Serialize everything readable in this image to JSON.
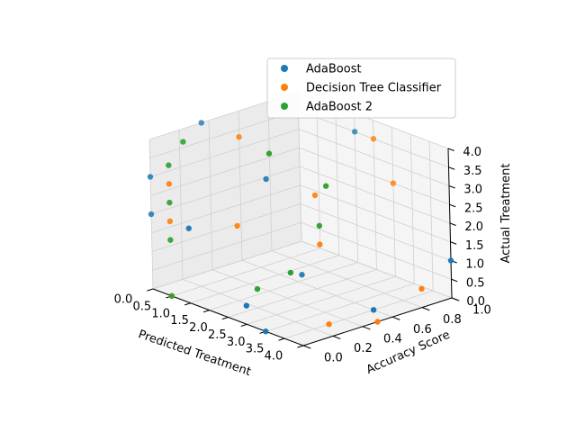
{
  "chart_data": {
    "type": "scatter",
    "projection": "3d",
    "xlabel": "Predicted Treatment",
    "ylabel": "Accuracy Score",
    "zlabel": "Actual Treatment",
    "xlim": [
      0,
      4
    ],
    "ylim": [
      0,
      1
    ],
    "zlim": [
      0,
      4
    ],
    "x_ticks": [
      "0.0",
      "0.5",
      "1.0",
      "1.5",
      "2.0",
      "2.5",
      "3.0",
      "3.5",
      "4.0"
    ],
    "y_ticks": [
      "0.0",
      "0.2",
      "0.4",
      "0.6",
      "0.8",
      "1.0"
    ],
    "z_ticks": [
      "0.0",
      "0.5",
      "1.0",
      "1.5",
      "2.0",
      "2.5",
      "3.0",
      "3.5",
      "4.0"
    ],
    "grid": true,
    "legend_position": "top-right",
    "series": [
      {
        "name": "AdaBoost",
        "color": "#1f77b4",
        "points": [
          {
            "x": 0,
            "y": 0,
            "z": 3
          },
          {
            "x": 0,
            "y": 0,
            "z": 2
          },
          {
            "x": 0,
            "y": 0.35,
            "z": 4
          },
          {
            "x": 1,
            "y": 0,
            "z": 2
          },
          {
            "x": 1.5,
            "y": 0.4,
            "z": 3
          },
          {
            "x": 2,
            "y": 0.5,
            "z": 0.5
          },
          {
            "x": 2.5,
            "y": 0,
            "z": 0.5
          },
          {
            "x": 3,
            "y": 0,
            "z": 0
          },
          {
            "x": 3.5,
            "y": 0.6,
            "z": 0
          },
          {
            "x": 1.5,
            "y": 1,
            "z": 3.5
          },
          {
            "x": 4,
            "y": 1,
            "z": 1
          }
        ]
      },
      {
        "name": "Decision Tree Classifier",
        "color": "#ff7f0e",
        "points": [
          {
            "x": 0.5,
            "y": 0,
            "z": 3
          },
          {
            "x": 0.5,
            "y": 0,
            "z": 2
          },
          {
            "x": 0.5,
            "y": 0,
            "z": 0
          },
          {
            "x": 1,
            "y": 0.35,
            "z": 4
          },
          {
            "x": 1.5,
            "y": 0.2,
            "z": 2
          },
          {
            "x": 2,
            "y": 0.6,
            "z": 2.5
          },
          {
            "x": 2.5,
            "y": 0.5,
            "z": 1.5
          },
          {
            "x": 2.5,
            "y": 1,
            "z": 2.5
          },
          {
            "x": 3.5,
            "y": 0.3,
            "z": 0
          },
          {
            "x": 4,
            "y": 0.5,
            "z": 0
          },
          {
            "x": 4,
            "y": 0.8,
            "z": 0.5
          },
          {
            "x": 2,
            "y": 1,
            "z": 3.5
          }
        ]
      },
      {
        "name": "AdaBoost 2",
        "color": "#2ca02c",
        "points": [
          {
            "x": 0.5,
            "y": 0,
            "z": 0
          },
          {
            "x": 0.5,
            "y": 0,
            "z": 1.5
          },
          {
            "x": 0.5,
            "y": 0,
            "z": 2.5
          },
          {
            "x": 0.5,
            "y": 0,
            "z": 3.5
          },
          {
            "x": 0.5,
            "y": 0.1,
            "z": 4
          },
          {
            "x": 2,
            "y": 0.3,
            "z": 4
          },
          {
            "x": 2,
            "y": 0.2,
            "z": 0.5
          },
          {
            "x": 2.5,
            "y": 0.3,
            "z": 1
          },
          {
            "x": 2.5,
            "y": 0.5,
            "z": 2
          },
          {
            "x": 2.5,
            "y": 0.55,
            "z": 3
          }
        ]
      }
    ]
  }
}
